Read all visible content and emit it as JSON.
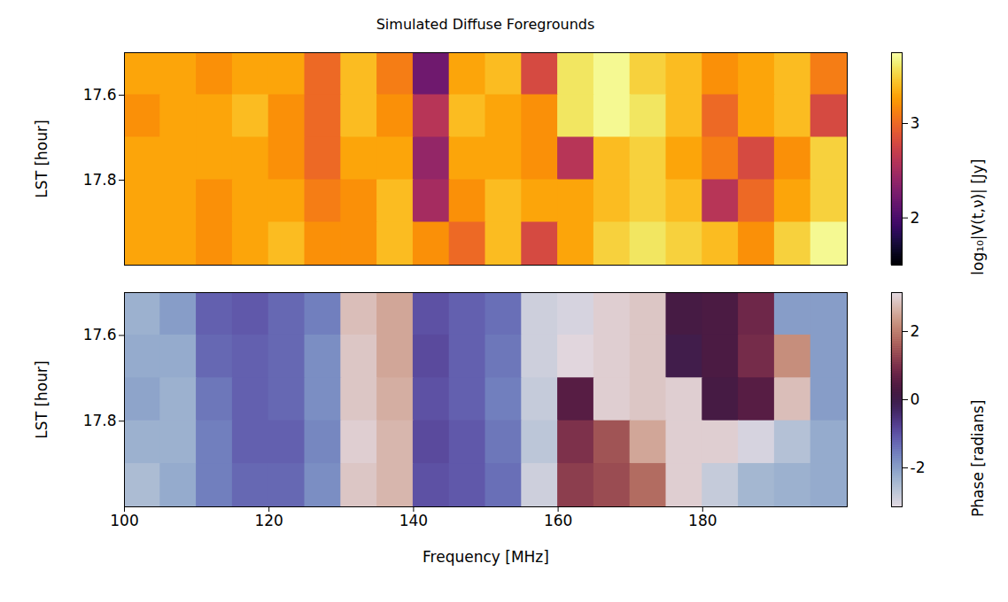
{
  "chart_data": [
    {
      "type": "heatmap",
      "title": "Simulated Diffuse Foregrounds",
      "ylabel": "LST [hour]",
      "xlim": [
        100,
        200
      ],
      "ylim": [
        17.5,
        18.0
      ],
      "yticks": [
        17.6,
        17.8
      ],
      "tick_labels": "y",
      "x_edges": [
        100,
        105,
        110,
        115,
        120,
        125,
        130,
        135,
        140,
        145,
        150,
        155,
        160,
        165,
        170,
        175,
        180,
        185,
        190,
        195,
        200
      ],
      "y_edges": [
        17.5,
        17.6,
        17.7,
        17.8,
        17.9,
        18.0
      ],
      "values": [
        [
          3.3,
          3.3,
          3.2,
          3.3,
          3.3,
          3.0,
          3.4,
          3.1,
          2.2,
          3.3,
          3.4,
          2.8,
          3.6,
          3.7,
          3.5,
          3.4,
          3.2,
          3.3,
          3.4,
          3.1
        ],
        [
          3.2,
          3.3,
          3.3,
          3.4,
          3.2,
          3.0,
          3.4,
          3.2,
          2.6,
          3.4,
          3.3,
          3.2,
          3.6,
          3.7,
          3.6,
          3.4,
          3.0,
          3.3,
          3.4,
          2.8
        ],
        [
          3.3,
          3.3,
          3.3,
          3.3,
          3.2,
          3.0,
          3.3,
          3.3,
          2.4,
          3.3,
          3.3,
          3.2,
          2.6,
          3.4,
          3.5,
          3.3,
          3.1,
          2.8,
          3.2,
          3.5
        ],
        [
          3.3,
          3.3,
          3.2,
          3.3,
          3.3,
          3.1,
          3.2,
          3.4,
          2.5,
          3.2,
          3.4,
          3.3,
          3.3,
          3.4,
          3.5,
          3.4,
          2.6,
          3.0,
          3.3,
          3.5
        ],
        [
          3.3,
          3.3,
          3.2,
          3.3,
          3.4,
          3.2,
          3.2,
          3.4,
          3.2,
          3.0,
          3.4,
          2.8,
          3.3,
          3.5,
          3.6,
          3.5,
          3.4,
          3.2,
          3.5,
          3.7
        ]
      ],
      "colorbar": {
        "label": "log₁₀|V(t,ν)| [Jy]",
        "range": [
          1.5,
          3.75
        ],
        "ticks": [
          2,
          3
        ],
        "color": "inferno"
      }
    },
    {
      "type": "heatmap",
      "xlabel": "Frequency [MHz]",
      "ylabel": "LST [hour]",
      "xlim": [
        100,
        200
      ],
      "xticks": [
        100,
        120,
        140,
        160,
        180
      ],
      "ylim": [
        17.5,
        18.0
      ],
      "yticks": [
        17.6,
        17.8
      ],
      "x_edges": [
        100,
        105,
        110,
        115,
        120,
        125,
        130,
        135,
        140,
        145,
        150,
        155,
        160,
        165,
        170,
        175,
        180,
        185,
        190,
        195,
        200
      ],
      "y_edges": [
        17.5,
        17.6,
        17.7,
        17.8,
        17.9,
        18.0
      ],
      "values": [
        [
          -2.3,
          -2.0,
          -1.2,
          -1.1,
          -1.3,
          -1.6,
          2.8,
          2.5,
          -1.0,
          -1.2,
          -1.4,
          -2.9,
          -3.0,
          3.0,
          2.9,
          0.2,
          0.3,
          0.8,
          -2.0,
          -2.0
        ],
        [
          -2.2,
          -2.2,
          -1.3,
          -1.2,
          -1.3,
          -1.8,
          2.9,
          2.5,
          -0.9,
          -1.2,
          -1.5,
          -2.9,
          3.1,
          3.0,
          2.9,
          0.0,
          0.3,
          0.9,
          2.2,
          -2.0
        ],
        [
          -2.1,
          -2.3,
          -1.5,
          -1.2,
          -1.3,
          -1.8,
          2.9,
          2.6,
          -1.0,
          -1.2,
          -1.6,
          -2.8,
          0.5,
          3.0,
          2.9,
          3.0,
          0.2,
          0.5,
          2.8,
          -2.0
        ],
        [
          -2.3,
          -2.3,
          -1.6,
          -1.2,
          -1.2,
          -1.7,
          3.0,
          2.7,
          -0.9,
          -1.1,
          -1.5,
          -2.7,
          1.0,
          1.5,
          2.5,
          3.0,
          3.0,
          -3.0,
          -2.6,
          -2.2
        ],
        [
          -2.5,
          -2.2,
          -1.6,
          -1.3,
          -1.3,
          -1.8,
          2.9,
          2.7,
          -1.0,
          -1.1,
          -1.4,
          -2.9,
          1.2,
          1.4,
          1.8,
          3.0,
          -2.8,
          -2.4,
          -2.3,
          -2.2
        ]
      ],
      "colorbar": {
        "label": "Phase [radians]",
        "range": [
          -3.14159,
          3.14159
        ],
        "ticks": [
          -2,
          0,
          2
        ],
        "color": "twilight"
      }
    }
  ]
}
